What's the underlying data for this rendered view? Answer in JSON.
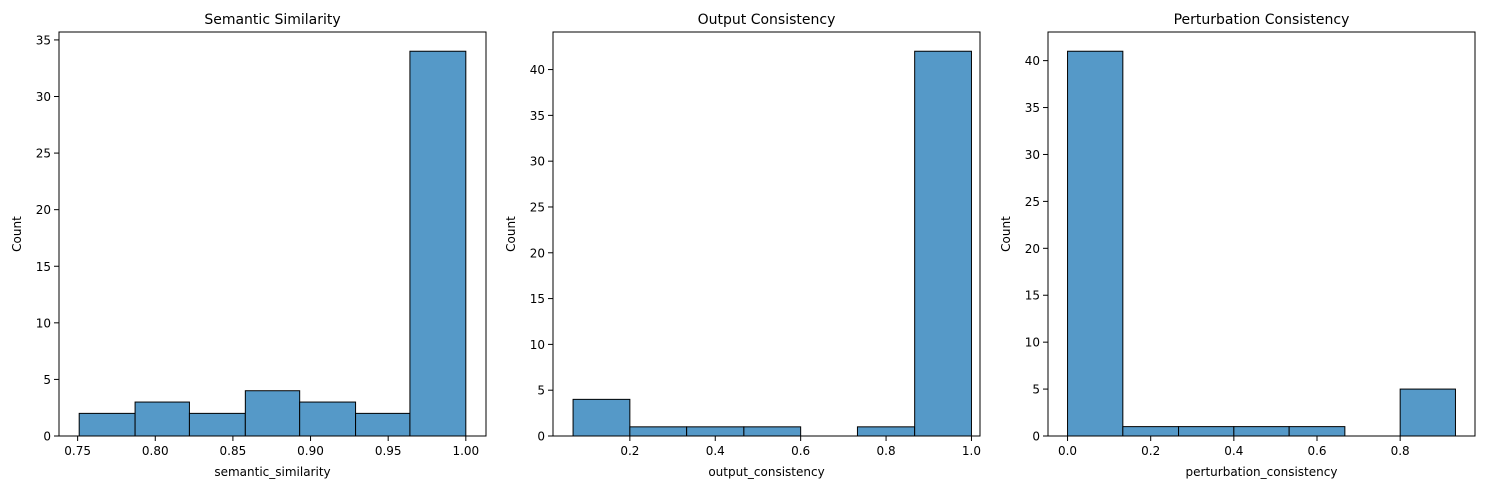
{
  "colors": {
    "bar_fill": "#5599c8",
    "bar_edge": "#000000",
    "axis": "#000000"
  },
  "chart_data": [
    {
      "type": "bar",
      "title": "Semantic Similarity",
      "xlabel": "semantic_similarity",
      "ylabel": "Count",
      "xlim": [
        0.738,
        1.013
      ],
      "ylim": [
        0,
        35.7
      ],
      "xticks": [
        0.75,
        0.8,
        0.85,
        0.9,
        0.95,
        1.0
      ],
      "xtick_labels": [
        "0.75",
        "0.80",
        "0.85",
        "0.90",
        "0.95",
        "1.00"
      ],
      "yticks": [
        0,
        5,
        10,
        15,
        20,
        25,
        30,
        35
      ],
      "ytick_labels": [
        "0",
        "5",
        "10",
        "15",
        "20",
        "25",
        "30",
        "35"
      ],
      "bins": [
        {
          "x0": 0.751,
          "x1": 0.787,
          "count": 2
        },
        {
          "x0": 0.787,
          "x1": 0.822,
          "count": 3
        },
        {
          "x0": 0.822,
          "x1": 0.858,
          "count": 2
        },
        {
          "x0": 0.858,
          "x1": 0.893,
          "count": 4
        },
        {
          "x0": 0.893,
          "x1": 0.929,
          "count": 3
        },
        {
          "x0": 0.929,
          "x1": 0.964,
          "count": 2
        },
        {
          "x0": 0.964,
          "x1": 1.0,
          "count": 34
        }
      ]
    },
    {
      "type": "bar",
      "title": "Output Consistency",
      "xlabel": "output_consistency",
      "ylabel": "Count",
      "xlim": [
        0.02,
        1.02
      ],
      "ylim": [
        0,
        44.1
      ],
      "xticks": [
        0.2,
        0.4,
        0.6,
        0.8,
        1.0
      ],
      "xtick_labels": [
        "0.2",
        "0.4",
        "0.6",
        "0.8",
        "1.0"
      ],
      "yticks": [
        0,
        5,
        10,
        15,
        20,
        25,
        30,
        35,
        40
      ],
      "ytick_labels": [
        "0",
        "5",
        "10",
        "15",
        "20",
        "25",
        "30",
        "35",
        "40"
      ],
      "bins": [
        {
          "x0": 0.067,
          "x1": 0.2,
          "count": 4
        },
        {
          "x0": 0.2,
          "x1": 0.333,
          "count": 1
        },
        {
          "x0": 0.333,
          "x1": 0.467,
          "count": 1
        },
        {
          "x0": 0.467,
          "x1": 0.6,
          "count": 1
        },
        {
          "x0": 0.6,
          "x1": 0.733,
          "count": 0
        },
        {
          "x0": 0.733,
          "x1": 0.867,
          "count": 1
        },
        {
          "x0": 0.867,
          "x1": 1.0,
          "count": 42
        }
      ]
    },
    {
      "type": "bar",
      "title": "Perturbation Consistency",
      "xlabel": "perturbation_consistency",
      "ylabel": "Count",
      "xlim": [
        -0.047,
        0.98
      ],
      "ylim": [
        0,
        43.05
      ],
      "xticks": [
        0.0,
        0.2,
        0.4,
        0.6,
        0.8
      ],
      "xtick_labels": [
        "0.0",
        "0.2",
        "0.4",
        "0.6",
        "0.8"
      ],
      "yticks": [
        0,
        5,
        10,
        15,
        20,
        25,
        30,
        35,
        40
      ],
      "ytick_labels": [
        "0",
        "5",
        "10",
        "15",
        "20",
        "25",
        "30",
        "35",
        "40"
      ],
      "bins": [
        {
          "x0": 0.0,
          "x1": 0.133,
          "count": 41
        },
        {
          "x0": 0.133,
          "x1": 0.267,
          "count": 1
        },
        {
          "x0": 0.267,
          "x1": 0.4,
          "count": 1
        },
        {
          "x0": 0.4,
          "x1": 0.533,
          "count": 1
        },
        {
          "x0": 0.533,
          "x1": 0.667,
          "count": 1
        },
        {
          "x0": 0.667,
          "x1": 0.8,
          "count": 0
        },
        {
          "x0": 0.8,
          "x1": 0.933,
          "count": 5
        }
      ]
    }
  ]
}
